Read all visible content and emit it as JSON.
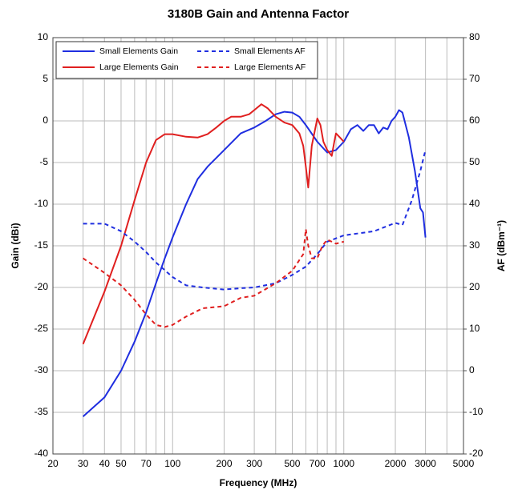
{
  "chart_data": {
    "type": "line",
    "title": "3180B Gain and Antenna Factor",
    "xlabel": "Frequency (MHz)",
    "ylabel": "Gain (dBi)",
    "y2label": "AF (dBm⁻¹)",
    "xscale": "log",
    "xlim": [
      20,
      5000
    ],
    "xticks": [
      20,
      30,
      40,
      50,
      70,
      100,
      200,
      300,
      500,
      700,
      1000,
      2000,
      3000,
      5000
    ],
    "xgrid_minor": [
      60,
      80,
      90,
      400,
      600,
      800,
      900,
      4000
    ],
    "ylim": [
      -40,
      10
    ],
    "yticks": [
      -40,
      -35,
      -30,
      -25,
      -20,
      -15,
      -10,
      -5,
      0,
      5,
      10
    ],
    "y2lim": [
      -20,
      80
    ],
    "y2ticks": [
      -20,
      -10,
      0,
      10,
      20,
      30,
      40,
      50,
      60,
      70,
      80
    ],
    "grid": true,
    "legend": "upper left",
    "series": [
      {
        "name": "Small Elements Gain",
        "color": "#1f2ee0",
        "linestyle": "solid",
        "x": [
          30,
          40,
          50,
          60,
          70,
          80,
          90,
          100,
          120,
          140,
          160,
          200,
          250,
          300,
          350,
          400,
          450,
          500,
          550,
          600,
          700,
          800,
          900,
          1000,
          1100,
          1200,
          1300,
          1400,
          1500,
          1600,
          1700,
          1800,
          1900,
          2000,
          2100,
          2200,
          2400,
          2600,
          2800,
          2900,
          3000
        ],
        "values": [
          -35.5,
          -33.2,
          -30,
          -26.5,
          -23,
          -19.5,
          -16.5,
          -14,
          -10,
          -7,
          -5.5,
          -3.5,
          -1.5,
          -0.8,
          0,
          0.8,
          1.1,
          1,
          0.5,
          -0.5,
          -2.5,
          -3.8,
          -3.5,
          -2.5,
          -1,
          -0.5,
          -1.2,
          -0.5,
          -0.5,
          -1.5,
          -0.8,
          -1,
          0,
          0.5,
          1.3,
          1,
          -2,
          -6,
          -10.5,
          -11,
          -14
        ]
      },
      {
        "name": "Large Elements Gain",
        "color": "#e01f1f",
        "linestyle": "solid",
        "x": [
          30,
          40,
          50,
          60,
          70,
          80,
          90,
          100,
          120,
          140,
          160,
          180,
          200,
          220,
          250,
          280,
          300,
          330,
          360,
          400,
          450,
          500,
          550,
          580,
          600,
          620,
          650,
          700,
          730,
          760,
          800,
          850,
          880,
          900,
          950,
          1000
        ],
        "values": [
          -26.8,
          -20.5,
          -15,
          -9.5,
          -5,
          -2.3,
          -1.6,
          -1.6,
          -1.9,
          -2,
          -1.6,
          -0.8,
          0,
          0.5,
          0.5,
          0.8,
          1.3,
          2,
          1.5,
          0.5,
          -0.2,
          -0.5,
          -1.5,
          -3,
          -5.5,
          -8,
          -3,
          0.3,
          -0.5,
          -2.5,
          -3.5,
          -4.2,
          -2.5,
          -1.5,
          -2,
          -2.5
        ]
      },
      {
        "name": "Small Elements AF",
        "color": "#1f2ee0",
        "linestyle": "dashed",
        "axis": "y2",
        "x": [
          30,
          40,
          50,
          60,
          70,
          80,
          100,
          120,
          150,
          200,
          250,
          300,
          400,
          500,
          600,
          700,
          800,
          1000,
          1500,
          2000,
          2200,
          2500,
          2800,
          3000
        ],
        "values": [
          35.3,
          35.3,
          33.5,
          31,
          28.5,
          26,
          22.5,
          20.5,
          20,
          19.5,
          19.8,
          20,
          21,
          23,
          25,
          28,
          31,
          32.5,
          33.5,
          35.5,
          35,
          41,
          48,
          53
        ]
      },
      {
        "name": "Large Elements AF",
        "color": "#e01f1f",
        "linestyle": "dashed",
        "axis": "y2",
        "x": [
          30,
          40,
          50,
          60,
          70,
          80,
          90,
          100,
          120,
          150,
          200,
          250,
          300,
          400,
          500,
          580,
          600,
          620,
          650,
          700,
          750,
          800,
          900,
          1000
        ],
        "values": [
          27,
          23.5,
          20.5,
          17,
          13.5,
          11,
          10.5,
          11,
          13,
          15,
          15.5,
          17.5,
          18,
          21,
          24,
          28,
          34,
          30,
          27,
          27,
          30,
          31.5,
          30.5,
          31
        ]
      }
    ]
  }
}
